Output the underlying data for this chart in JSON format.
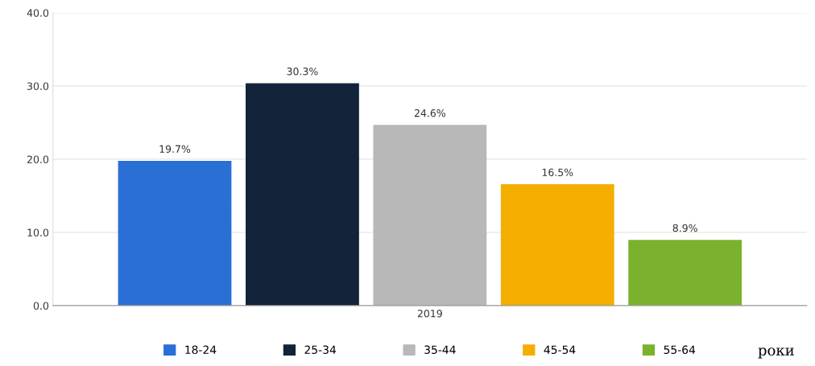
{
  "chart_data": {
    "type": "bar",
    "categories": [
      "2019"
    ],
    "xlabel": "роки",
    "series": [
      {
        "name": "18-24",
        "color": "#2a6fd6",
        "values": [
          19.7
        ],
        "value_labels": [
          "19.7%"
        ]
      },
      {
        "name": "25-34",
        "color": "#12233a",
        "values": [
          30.3
        ],
        "value_labels": [
          "30.3%"
        ]
      },
      {
        "name": "35-44",
        "color": "#b8b8b8",
        "values": [
          24.6
        ],
        "value_labels": [
          "24.6%"
        ]
      },
      {
        "name": "45-54",
        "color": "#f5ae00",
        "values": [
          16.5
        ],
        "value_labels": [
          "16.5%"
        ]
      },
      {
        "name": "55-64",
        "color": "#7ab22e",
        "values": [
          8.9
        ],
        "value_labels": [
          "8.9%"
        ]
      }
    ],
    "ylim": [
      0,
      40
    ],
    "yticks": [
      {
        "value": 0,
        "label": "0.0"
      },
      {
        "value": 10,
        "label": "10.0"
      },
      {
        "value": 20,
        "label": "20.0"
      },
      {
        "value": 30,
        "label": "30.0"
      },
      {
        "value": 40,
        "label": "40.0"
      }
    ],
    "grid": "y",
    "legend": "bottom"
  }
}
